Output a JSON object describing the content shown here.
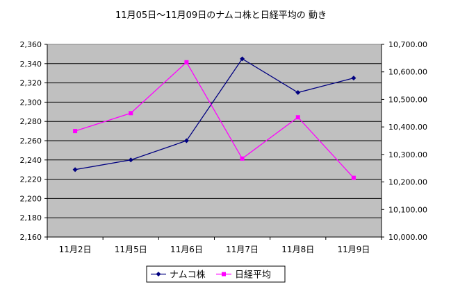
{
  "chart_data": {
    "type": "line",
    "title": "11月05日～11月09日のナムコ株と日経平均の 動き",
    "categories": [
      "11月2日",
      "11月5日",
      "11月6日",
      "11月7日",
      "11月8日",
      "11月9日"
    ],
    "y_left": {
      "ylim": [
        2160,
        2360
      ],
      "ticks": [
        "2,160",
        "2,180",
        "2,200",
        "2,220",
        "2,240",
        "2,260",
        "2,280",
        "2,300",
        "2,320",
        "2,340",
        "2,360"
      ]
    },
    "y_right": {
      "ylim": [
        10000,
        10700
      ],
      "ticks": [
        "10,000.00",
        "10,100.00",
        "10,200.00",
        "10,300.00",
        "10,400.00",
        "10,500.00",
        "10,600.00",
        "10,700.00"
      ]
    },
    "series": [
      {
        "name": "ナムコ株",
        "axis": "left",
        "color": "#000080",
        "marker": "diamond",
        "values": [
          2230,
          2240,
          2260,
          2345,
          2310,
          2325
        ]
      },
      {
        "name": "日経平均",
        "axis": "right",
        "color": "#FF00FF",
        "marker": "square",
        "values": [
          10385,
          10450,
          10635,
          10285,
          10435,
          10215
        ]
      }
    ],
    "grid": true,
    "plot_background": "#C0C0C0",
    "legend_position": "bottom"
  }
}
